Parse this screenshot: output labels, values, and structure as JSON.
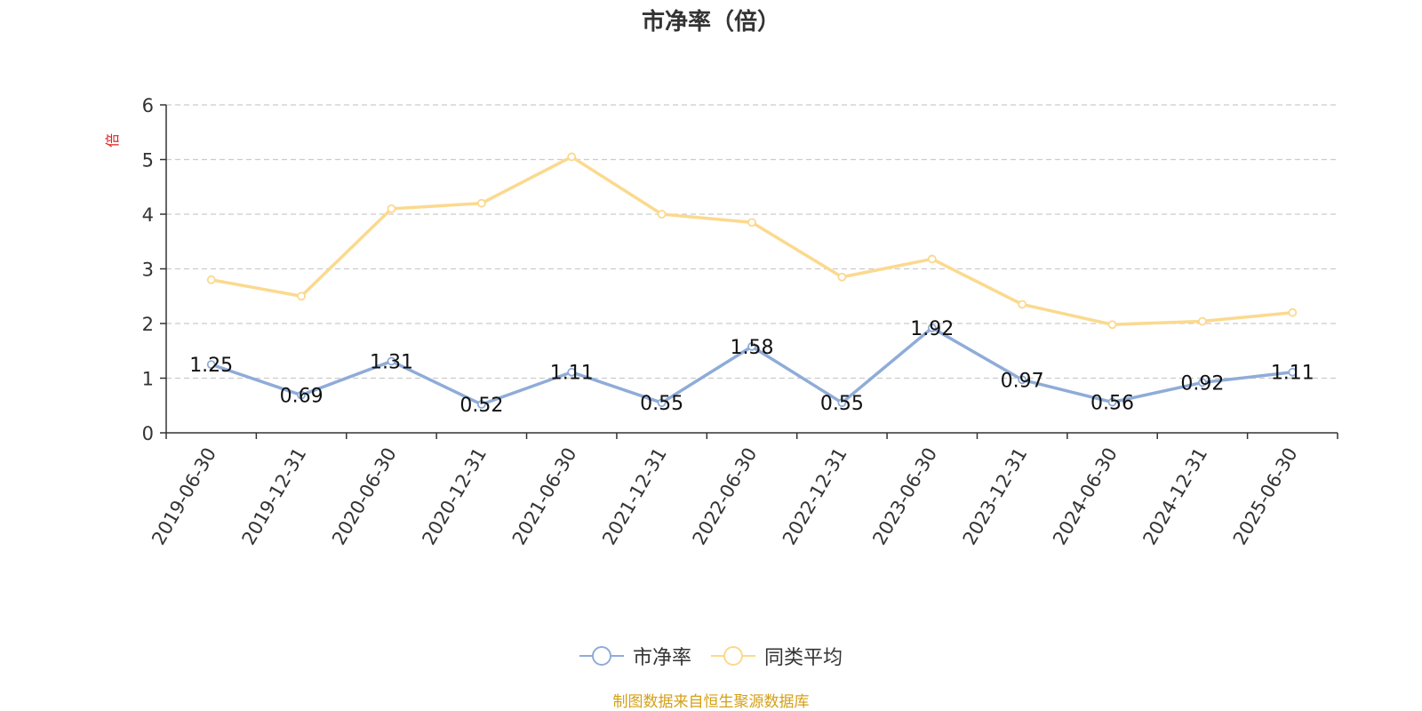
{
  "chart_data": {
    "type": "line",
    "title": "市净率（倍）",
    "ylabel": "倍",
    "ylim": [
      0,
      6
    ],
    "yticks": [
      "0",
      "1",
      "2",
      "3",
      "4",
      "5",
      "6"
    ],
    "grid": true,
    "legend_position": "bottom",
    "categories": [
      "2019-06-30",
      "2019-12-31",
      "2020-06-30",
      "2020-12-31",
      "2021-06-30",
      "2021-12-31",
      "2022-06-30",
      "2022-12-31",
      "2023-06-30",
      "2023-12-31",
      "2024-06-30",
      "2024-12-31",
      "2025-06-30"
    ],
    "series": [
      {
        "name": "市净率",
        "color": "#8facd8",
        "values": [
          1.25,
          0.69,
          1.31,
          0.52,
          1.11,
          0.55,
          1.58,
          0.55,
          1.92,
          0.97,
          0.56,
          0.92,
          1.11
        ],
        "labels": [
          "1.25",
          "0.69",
          "1.31",
          "0.52",
          "1.11",
          "0.55",
          "1.58",
          "0.55",
          "1.92",
          "0.97",
          "0.56",
          "0.92",
          "1.11"
        ]
      },
      {
        "name": "同类平均",
        "color": "#fbd98e",
        "values": [
          2.8,
          2.5,
          4.1,
          4.2,
          5.05,
          4.0,
          3.85,
          2.85,
          3.18,
          2.35,
          1.98,
          2.04,
          2.2
        ]
      }
    ]
  },
  "source_note": {
    "text": "制图数据来自恒生聚源数据库",
    "color": "#d4a017"
  },
  "colors": {
    "axis": "#333333",
    "grid": "#cccccc",
    "ylabel": "#e02020"
  }
}
